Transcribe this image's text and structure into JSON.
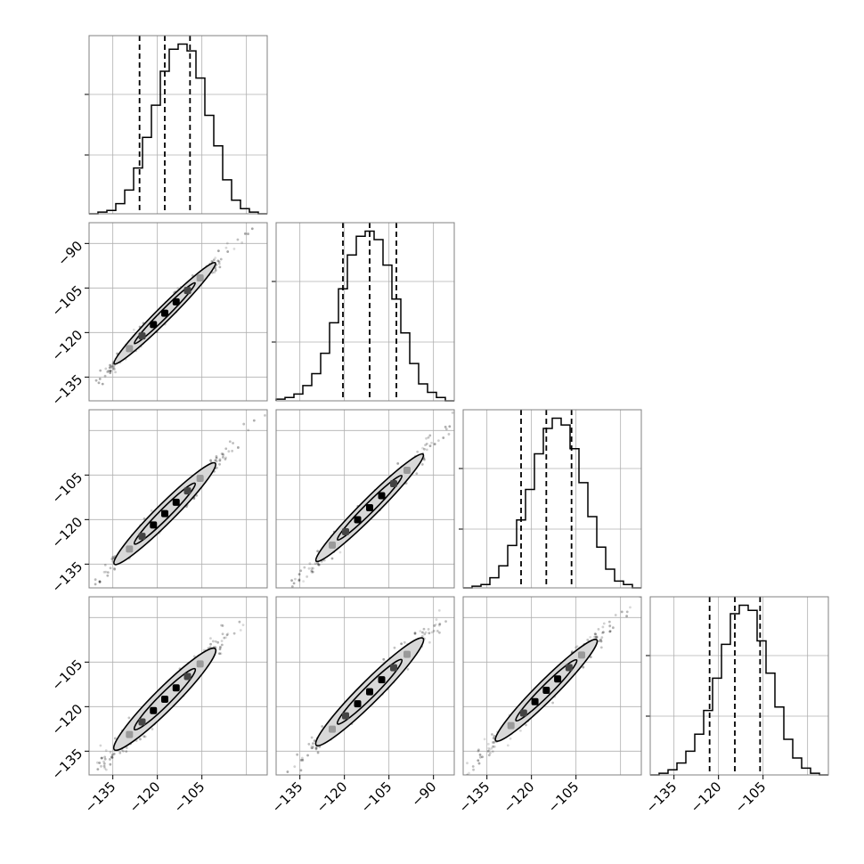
{
  "chart_data": {
    "type": "corner",
    "n_params": 4,
    "range": [
      -143,
      -83
    ],
    "ticks": [
      -135,
      -120,
      -105,
      -90
    ],
    "grid": true,
    "style": {
      "line_color": "#000000",
      "frame_color": "#808080",
      "grid_color": "#b0b0b0",
      "fill_color": "#d8d8d8",
      "point_color": "#000000"
    },
    "parameters": [
      {
        "quantiles": [
          -126.0,
          -117.5,
          -109.0
        ],
        "bin_edges": [
          -143,
          -140,
          -137,
          -134,
          -131,
          -128,
          -125,
          -122,
          -119,
          -116,
          -113,
          -110,
          -107,
          -104,
          -101,
          -98,
          -95,
          -92,
          -89,
          -86,
          -83
        ],
        "histogram": [
          0.0,
          0.01,
          0.02,
          0.06,
          0.14,
          0.27,
          0.45,
          0.64,
          0.84,
          0.97,
          1.0,
          0.96,
          0.8,
          0.58,
          0.4,
          0.2,
          0.08,
          0.03,
          0.01,
          0.0
        ]
      },
      {
        "quantiles": [
          -120.5,
          -111.5,
          -102.5
        ],
        "bin_edges": [
          -143,
          -140,
          -137,
          -134,
          -131,
          -128,
          -125,
          -122,
          -119,
          -116,
          -113,
          -110,
          -107,
          -104,
          -101,
          -98,
          -95,
          -92,
          -89,
          -86,
          -83
        ],
        "histogram": [
          0.01,
          0.02,
          0.04,
          0.09,
          0.16,
          0.28,
          0.46,
          0.66,
          0.86,
          0.97,
          1.0,
          0.95,
          0.8,
          0.6,
          0.4,
          0.22,
          0.1,
          0.05,
          0.02,
          0.0
        ]
      },
      {
        "quantiles": [
          -123.5,
          -115.0,
          -106.5
        ],
        "bin_edges": [
          -143,
          -140,
          -137,
          -134,
          -131,
          -128,
          -125,
          -122,
          -119,
          -116,
          -113,
          -110,
          -107,
          -104,
          -101,
          -98,
          -95,
          -92,
          -89,
          -86,
          -83
        ],
        "histogram": [
          0.0,
          0.01,
          0.02,
          0.06,
          0.13,
          0.25,
          0.4,
          0.58,
          0.79,
          0.94,
          1.0,
          0.96,
          0.82,
          0.62,
          0.42,
          0.24,
          0.11,
          0.04,
          0.02,
          0.0
        ]
      },
      {
        "quantiles": [
          -123.0,
          -114.5,
          -106.0
        ],
        "bin_edges": [
          -143,
          -140,
          -137,
          -134,
          -131,
          -128,
          -125,
          -122,
          -119,
          -116,
          -113,
          -110,
          -107,
          -104,
          -101,
          -98,
          -95,
          -92,
          -89,
          -86,
          -83
        ],
        "histogram": [
          0.0,
          0.01,
          0.03,
          0.07,
          0.14,
          0.24,
          0.38,
          0.57,
          0.77,
          0.95,
          1.0,
          0.97,
          0.79,
          0.6,
          0.4,
          0.21,
          0.1,
          0.04,
          0.01,
          0.0
        ]
      }
    ],
    "pairs": [
      {
        "row": 1,
        "col": 0,
        "slope": 1.0,
        "intercept": 4.0,
        "width": 2.3
      },
      {
        "row": 2,
        "col": 0,
        "slope": 1.0,
        "intercept": -0.5,
        "width": 3.0
      },
      {
        "row": 2,
        "col": 1,
        "slope": 1.0,
        "intercept": -4.5,
        "width": 2.8
      },
      {
        "row": 3,
        "col": 0,
        "slope": 1.0,
        "intercept": 0.0,
        "width": 3.5
      },
      {
        "row": 3,
        "col": 1,
        "slope": 1.0,
        "intercept": -3.5,
        "width": 3.4
      },
      {
        "row": 3,
        "col": 2,
        "slope": 1.0,
        "intercept": 0.5,
        "width": 3.1
      }
    ]
  }
}
